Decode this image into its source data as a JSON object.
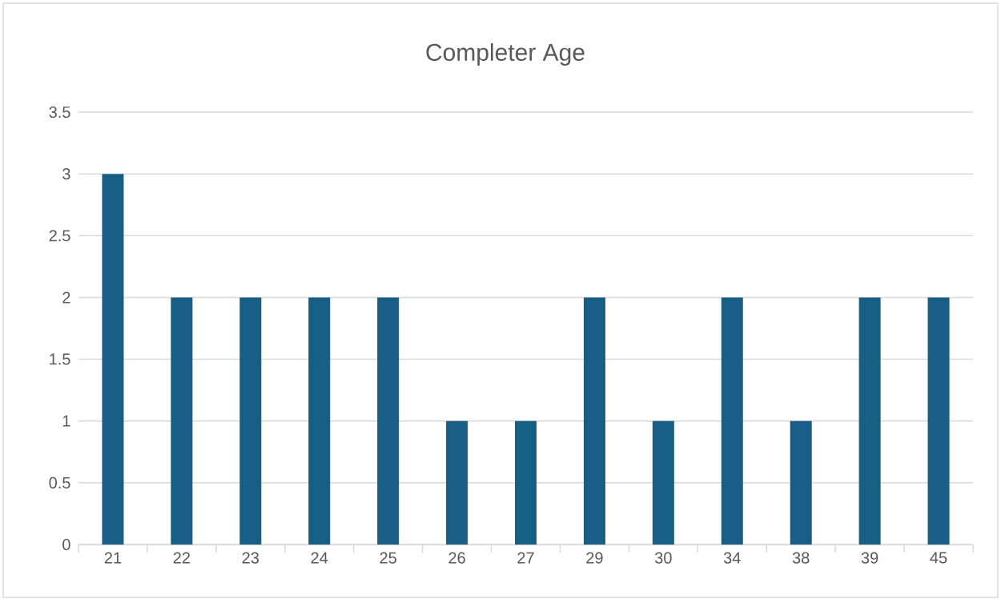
{
  "chart_data": {
    "type": "bar",
    "title": "Completer Age",
    "categories": [
      "21",
      "22",
      "23",
      "24",
      "25",
      "26",
      "27",
      "29",
      "30",
      "34",
      "38",
      "39",
      "45"
    ],
    "values": [
      3,
      2,
      2,
      2,
      2,
      1,
      1,
      2,
      1,
      2,
      1,
      2,
      2
    ],
    "color": "#165e83",
    "ylim": [
      0,
      3.5
    ],
    "yticks": [
      0,
      0.5,
      1,
      1.5,
      2,
      2.5,
      3,
      3.5
    ],
    "grid": "y"
  }
}
